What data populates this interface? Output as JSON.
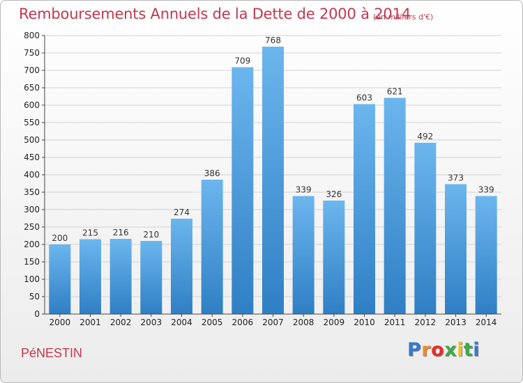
{
  "header": {
    "title": "Remboursements Annuels de la Dette de 2000 à 2014",
    "subtitle": "(en milliers d'€)"
  },
  "footer": {
    "town": "PéNESTIN",
    "logo_letters": [
      "P",
      "r",
      "o",
      "x",
      "i",
      "t",
      "i"
    ],
    "logo_colors": [
      "#3a78c8",
      "#f08a24",
      "#e0302c",
      "#3ea84a",
      "#f0c020",
      "#3ea84a",
      "#3a78c8"
    ]
  },
  "colors": {
    "bar_top": "#6cb6ee",
    "bar_bottom": "#2f7fc4",
    "grid": "#d2d2d2",
    "title": "#c0394f"
  },
  "chart_data": {
    "type": "bar",
    "categories": [
      "2000",
      "2001",
      "2002",
      "2003",
      "2004",
      "2005",
      "2006",
      "2007",
      "2008",
      "2009",
      "2010",
      "2011",
      "2012",
      "2013",
      "2014"
    ],
    "values": [
      200,
      215,
      216,
      210,
      274,
      386,
      709,
      768,
      339,
      326,
      603,
      621,
      492,
      373,
      339
    ],
    "title": "Remboursements Annuels de la Dette de 2000 à 2014",
    "subtitle": "(en milliers d'€)",
    "xlabel": "",
    "ylabel": "",
    "ylim": [
      0,
      800
    ],
    "yticks": [
      0,
      50,
      100,
      150,
      200,
      250,
      300,
      350,
      400,
      450,
      500,
      550,
      600,
      650,
      700,
      750,
      800
    ],
    "grid": true,
    "legend": "none",
    "data_labels": true
  }
}
